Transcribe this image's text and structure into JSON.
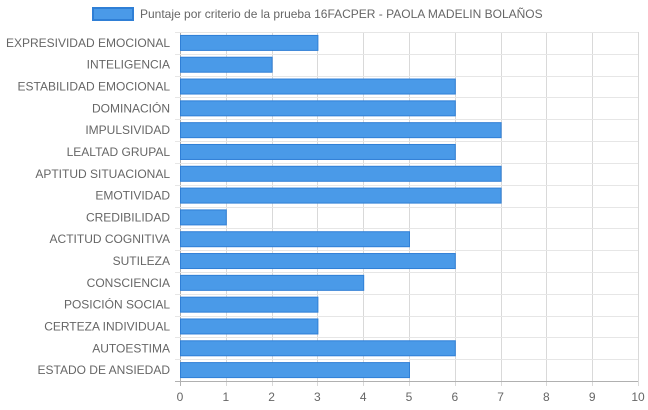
{
  "chart_data": {
    "type": "bar",
    "orientation": "horizontal",
    "categories": [
      "EXPRESIVIDAD EMOCIONAL",
      "INTELIGENCIA",
      "ESTABILIDAD EMOCIONAL",
      "DOMINACIÓN",
      "IMPULSIVIDAD",
      "LEALTAD GRUPAL",
      "APTITUD SITUACIONAL",
      "EMOTIVIDAD",
      "CREDIBILIDAD",
      "ACTITUD COGNITIVA",
      "SUTILEZA",
      "CONSCIENCIA",
      "POSICIÓN SOCIAL",
      "CERTEZA INDIVIDUAL",
      "AUTOESTIMA",
      "ESTADO DE ANSIEDAD"
    ],
    "series": [
      {
        "name": "Puntaje por criterio de la prueba 16FACPER - PAOLA MADELIN BOLAÑOS",
        "values": [
          3,
          2,
          6,
          6,
          7,
          6,
          7,
          7,
          1,
          5,
          6,
          4,
          3,
          3,
          6,
          5
        ],
        "color": "#4a9ae8",
        "border_color": "#2f7fd6"
      }
    ],
    "xlim": [
      0,
      10
    ],
    "x_ticks": [
      0,
      1,
      2,
      3,
      4,
      5,
      6,
      7,
      8,
      9,
      10
    ],
    "grid": true,
    "legend_position": "top-center"
  }
}
